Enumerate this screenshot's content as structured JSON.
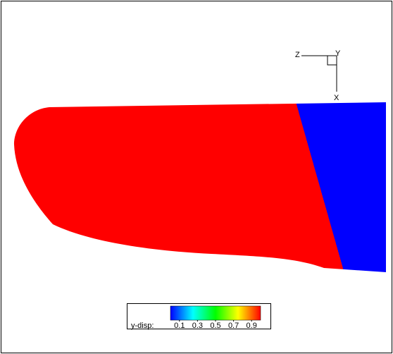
{
  "chart_data": {
    "type": "contour",
    "axes_labels": [
      "Z",
      "Y",
      "X"
    ],
    "colorbar": {
      "label": "y-disp:",
      "clim": [
        0,
        1
      ],
      "ticks": [
        0.1,
        0.3,
        0.5,
        0.7,
        0.9
      ]
    },
    "colormap": [
      "#0000ff",
      "#00ffff",
      "#00ff00",
      "#ffff00",
      "#ff0000"
    ]
  }
}
